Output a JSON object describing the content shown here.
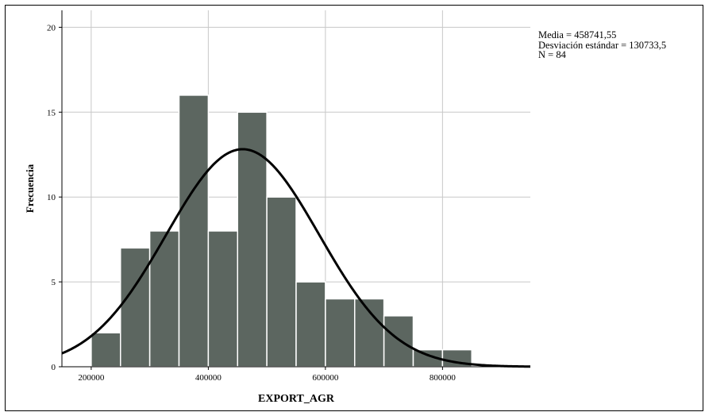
{
  "chart_data": {
    "type": "bar",
    "title": "",
    "xlabel": "EXPORT_AGR",
    "ylabel": "Frecuencia",
    "bin_width": 50000,
    "bins": [
      {
        "start": 200000,
        "end": 250000,
        "count": 2
      },
      {
        "start": 250000,
        "end": 300000,
        "count": 7
      },
      {
        "start": 300000,
        "end": 350000,
        "count": 8
      },
      {
        "start": 350000,
        "end": 400000,
        "count": 16
      },
      {
        "start": 400000,
        "end": 450000,
        "count": 8
      },
      {
        "start": 450000,
        "end": 500000,
        "count": 15
      },
      {
        "start": 500000,
        "end": 550000,
        "count": 10
      },
      {
        "start": 550000,
        "end": 600000,
        "count": 5
      },
      {
        "start": 600000,
        "end": 650000,
        "count": 4
      },
      {
        "start": 650000,
        "end": 700000,
        "count": 4
      },
      {
        "start": 700000,
        "end": 750000,
        "count": 3
      },
      {
        "start": 750000,
        "end": 800000,
        "count": 1
      },
      {
        "start": 800000,
        "end": 850000,
        "count": 1
      }
    ],
    "xlim": [
      150000,
      950000
    ],
    "ylim": [
      0,
      21
    ],
    "x_ticks": [
      200000,
      400000,
      600000,
      800000
    ],
    "x_tick_labels": [
      "200000",
      "400000",
      "600000",
      "800000"
    ],
    "y_ticks": [
      0,
      5,
      10,
      15,
      20
    ],
    "y_tick_labels": [
      "0",
      "5",
      "10",
      "15",
      "20"
    ],
    "grid": true,
    "normal_curve": {
      "mean": 458741.55,
      "std": 130733.5,
      "n": 84
    },
    "bar_color": "#5c6660",
    "bar_edge_color": "#ffffff",
    "curve_color": "#000000"
  },
  "stats": {
    "mean_text": "Media = 458741,55",
    "std_text": "Desviación estándar = 130733,5",
    "n_text": "N = 84"
  }
}
